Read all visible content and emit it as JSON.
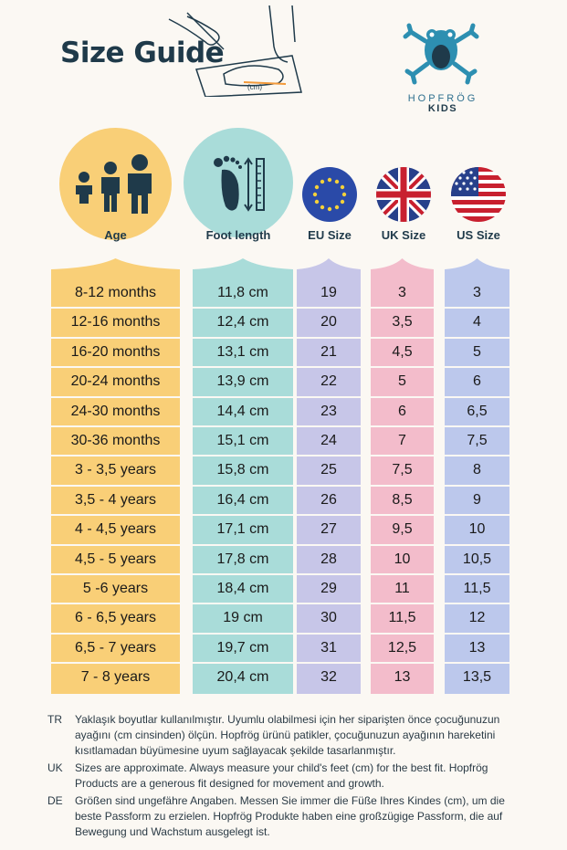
{
  "header": {
    "title": "Size Guide",
    "sketch_label": "(cm)",
    "brand": "HOPFRÖG",
    "brand_sub": "KIDS"
  },
  "columns": [
    {
      "id": "age",
      "label": "Age",
      "color": "#f9cf77",
      "icon": "family-icon"
    },
    {
      "id": "foot",
      "label": "Foot length",
      "color": "#a9dcd9",
      "icon": "footprint-ruler-icon"
    },
    {
      "id": "eu",
      "label": "EU Size",
      "color": "#c7c6e8",
      "icon": "eu-flag-icon"
    },
    {
      "id": "uk",
      "label": "UK Size",
      "color": "#f3bccb",
      "icon": "uk-flag-icon"
    },
    {
      "id": "us",
      "label": "US Size",
      "color": "#bcc8ec",
      "icon": "us-flag-icon"
    }
  ],
  "rows": [
    {
      "age": "8-12 months",
      "foot": "11,8 cm",
      "eu": "19",
      "uk": "3",
      "us": "3"
    },
    {
      "age": "12-16 months",
      "foot": "12,4 cm",
      "eu": "20",
      "uk": "3,5",
      "us": "4"
    },
    {
      "age": "16-20 months",
      "foot": "13,1 cm",
      "eu": "21",
      "uk": "4,5",
      "us": "5"
    },
    {
      "age": "20-24 months",
      "foot": "13,9 cm",
      "eu": "22",
      "uk": "5",
      "us": "6"
    },
    {
      "age": "24-30 months",
      "foot": "14,4 cm",
      "eu": "23",
      "uk": "6",
      "us": "6,5"
    },
    {
      "age": "30-36 months",
      "foot": "15,1 cm",
      "eu": "24",
      "uk": "7",
      "us": "7,5"
    },
    {
      "age": "3 - 3,5 years",
      "foot": "15,8 cm",
      "eu": "25",
      "uk": "7,5",
      "us": "8"
    },
    {
      "age": "3,5 - 4 years",
      "foot": "16,4 cm",
      "eu": "26",
      "uk": "8,5",
      "us": "9"
    },
    {
      "age": "4 - 4,5 years",
      "foot": "17,1 cm",
      "eu": "27",
      "uk": "9,5",
      "us": "10"
    },
    {
      "age": "4,5 - 5 years",
      "foot": "17,8 cm",
      "eu": "28",
      "uk": "10",
      "us": "10,5"
    },
    {
      "age": "5 -6 years",
      "foot": "18,4 cm",
      "eu": "29",
      "uk": "11",
      "us": "11,5"
    },
    {
      "age": "6 - 6,5 years",
      "foot": "19 cm",
      "eu": "30",
      "uk": "11,5",
      "us": "12"
    },
    {
      "age": "6,5 - 7 years",
      "foot": "19,7 cm",
      "eu": "31",
      "uk": "12,5",
      "us": "13"
    },
    {
      "age": "7 - 8 years",
      "foot": "20,4 cm",
      "eu": "32",
      "uk": "13",
      "us": "13,5"
    }
  ],
  "notes": [
    {
      "code": "TR",
      "text": "Yaklaşık boyutlar kullanılmıştır. Uyumlu olabilmesi için her siparişten önce çocuğunuzun ayağını (cm cinsinden) ölçün. Hopfrög ürünü patikler, çocuğunuzun ayağının hareketini kısıtlamadan büyümesine uyum sağlayacak şekilde tasarlanmıştır."
    },
    {
      "code": "UK",
      "text": "Sizes are approximate. Always measure your child's feet (cm) for the best fit. Hopfrög Products are a generous fit designed for movement and growth."
    },
    {
      "code": "DE",
      "text": "Größen sind ungefähre Angaben. Messen Sie immer die Füße Ihres Kindes (cm), um die beste Passform zu erzielen. Hopfrög Produkte haben eine großzügige Passform, die auf Bewegung und Wachstum ausgelegt ist."
    }
  ]
}
